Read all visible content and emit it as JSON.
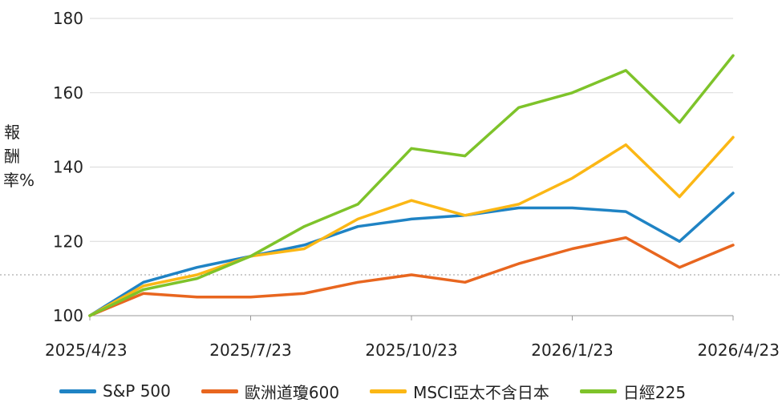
{
  "chart_data": {
    "type": "line",
    "ylabel": "報酬率%",
    "ylim": [
      100,
      180
    ],
    "yticks": [
      100,
      120,
      140,
      160,
      180
    ],
    "xlabels": [
      "2025/4/23",
      "2025/7/23",
      "2025/10/23",
      "2026/1/23",
      "2026/4/23"
    ],
    "x": [
      "2025/4/23",
      "2025/5/23",
      "2025/6/23",
      "2025/7/23",
      "2025/8/23",
      "2025/9/23",
      "2025/10/23",
      "2025/11/23",
      "2025/12/23",
      "2026/1/23",
      "2026/2/23",
      "2026/3/23",
      "2026/4/23"
    ],
    "reference_line": 111,
    "series": [
      {
        "name": "S&P 500",
        "color": "#1f83c4",
        "values": [
          100,
          109,
          113,
          116,
          119,
          124,
          126,
          127,
          129,
          129,
          128,
          120,
          133
        ]
      },
      {
        "name": "歐洲道瓊600",
        "color": "#e8661f",
        "values": [
          100,
          106,
          105,
          105,
          106,
          109,
          111,
          109,
          114,
          118,
          121,
          113,
          119
        ]
      },
      {
        "name": "MSCI亞太不含日本",
        "color": "#fbb715",
        "values": [
          100,
          108,
          111,
          116,
          118,
          126,
          131,
          127,
          130,
          137,
          146,
          132,
          148
        ]
      },
      {
        "name": "日經225",
        "color": "#7ec32a",
        "values": [
          100,
          107,
          110,
          116,
          124,
          130,
          145,
          143,
          156,
          160,
          166,
          152,
          170
        ]
      }
    ]
  }
}
